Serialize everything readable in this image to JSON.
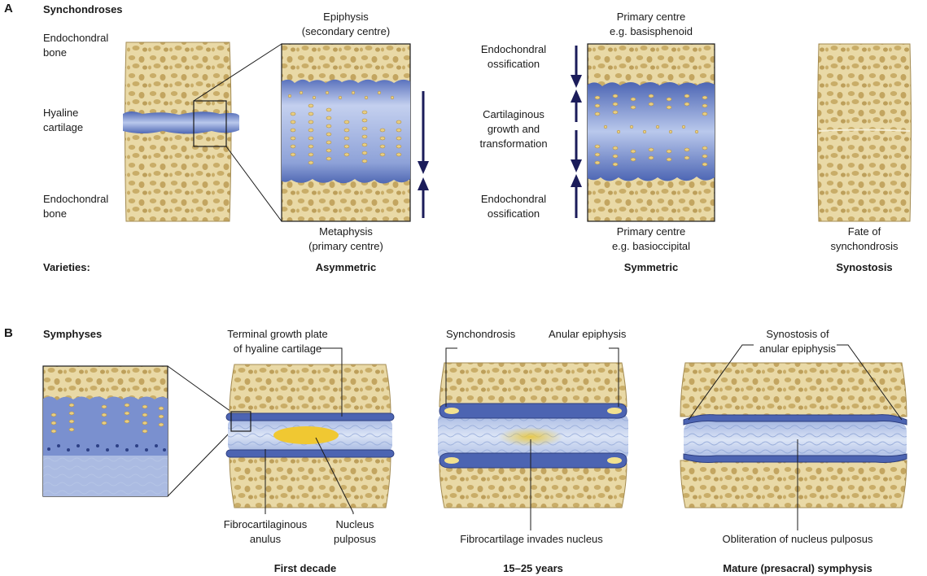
{
  "panels": {
    "a": {
      "letter": "A",
      "title": "Synchondroses",
      "labels": {
        "endochondral_bone_top": "Endochondral\nbone",
        "hyaline_cartilage": "Hyaline\ncartilage",
        "endochondral_bone_bottom": "Endochondral\nbone",
        "epiphysis": "Epiphysis\n(secondary centre)",
        "metaphysis": "Metaphysis\n(primary centre)",
        "endochondral_ossification_top": "Endochondral\nossification",
        "cartilaginous_growth": "Cartilaginous\ngrowth and\ntransformation",
        "endochondral_ossification_bottom": "Endochondral\nossification",
        "primary_centre_top": "Primary centre\ne.g. basisphenoid",
        "primary_centre_bottom": "Primary centre\ne.g. basioccipital",
        "fate": "Fate of\nsynchondrosis"
      },
      "varieties_label": "Varieties:",
      "varieties": [
        "Asymmetric",
        "Symmetric",
        "Synostosis"
      ]
    },
    "b": {
      "letter": "B",
      "title": "Symphyses",
      "labels": {
        "terminal_growth_plate": "Terminal growth plate\nof hyaline cartilage",
        "fibrocartilaginous_anulus": "Fibrocartilaginous\nanulus",
        "nucleus_pulposus": "Nucleus\npulposus",
        "synchondrosis": "Synchondrosis",
        "anular_epiphysis": "Anular epiphysis",
        "fibrocartilage_invades": "Fibrocartilage invades nucleus",
        "synostosis_anular": "Synostosis of\nanular epiphysis",
        "obliteration": "Obliteration of nucleus pulposus"
      },
      "stages": [
        "First decade",
        "15–25 years",
        "Mature (presacral) symphysis"
      ]
    }
  },
  "colors": {
    "bone": "#e7d6a2",
    "bone_pore": "#c5a864",
    "cartilage": "#6d84c6",
    "cartilage_light": "#c7d3ee",
    "nucleus": "#f0c832",
    "arrow": "#1b1c5a"
  }
}
